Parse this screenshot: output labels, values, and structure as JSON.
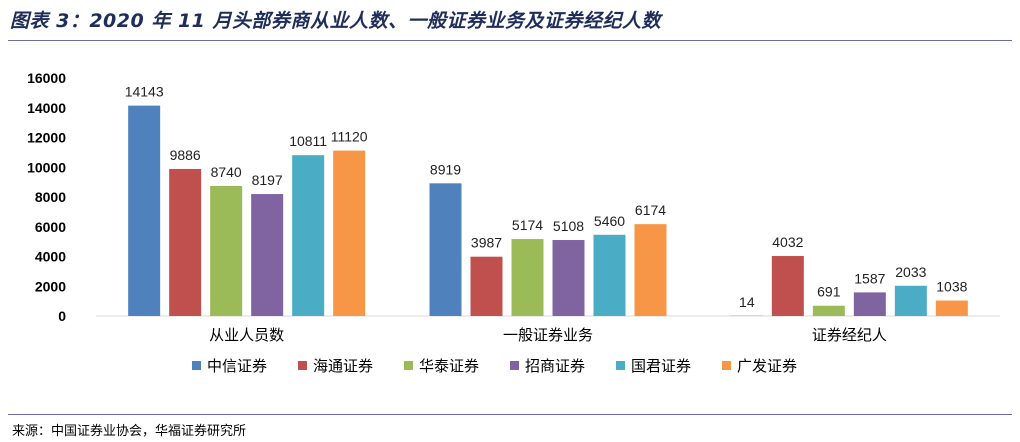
{
  "figure": {
    "title": "图表 3：2020 年 11 月头部券商从业人数、一般证券业务及证券经纪人数",
    "source": "来源：中国证券业协会，华福证券研究所"
  },
  "chart_data": {
    "type": "bar",
    "categories": [
      "从业人员数",
      "一般证券业务",
      "证券经纪人"
    ],
    "series": [
      {
        "name": "中信证券",
        "color": "#4f81bd",
        "values": [
          14143,
          8919,
          14
        ]
      },
      {
        "name": "海通证券",
        "color": "#c0504d",
        "values": [
          9886,
          3987,
          4032
        ]
      },
      {
        "name": "华泰证券",
        "color": "#9bbb59",
        "values": [
          8740,
          5174,
          691
        ]
      },
      {
        "name": "招商证券",
        "color": "#8064a2",
        "values": [
          8197,
          5108,
          1587
        ]
      },
      {
        "name": "国君证券",
        "color": "#4bacc6",
        "values": [
          10811,
          5460,
          2033
        ]
      },
      {
        "name": "广发证券",
        "color": "#f79646",
        "values": [
          11120,
          6174,
          1038
        ]
      }
    ],
    "ylim": [
      0,
      16000
    ],
    "yticks": [
      0,
      2000,
      4000,
      6000,
      8000,
      10000,
      12000,
      14000,
      16000
    ],
    "grid": false,
    "legend": "bottom"
  }
}
